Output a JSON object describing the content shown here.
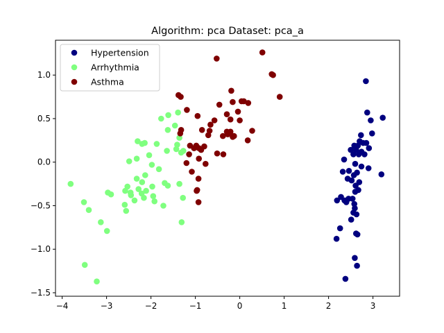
{
  "chart_data": {
    "type": "scatter",
    "title": "Algorithm: pca Dataset: pca_a",
    "xlabel": "",
    "ylabel": "",
    "xlim": [
      -4.15,
      3.6
    ],
    "ylim": [
      -1.54,
      1.4
    ],
    "xticks": [
      -4,
      -3,
      -2,
      -1,
      0,
      1,
      2,
      3
    ],
    "yticks": [
      -1.5,
      -1.0,
      -0.5,
      0.0,
      0.5,
      1.0
    ],
    "xtick_labels": [
      "−4",
      "−3",
      "−2",
      "−1",
      "0",
      "1",
      "2",
      "3"
    ],
    "ytick_labels": [
      "−1.5",
      "−1.0",
      "−0.5",
      "0.0",
      "0.5",
      "1.0"
    ],
    "grid": false,
    "legend_position": "top-left",
    "series": [
      {
        "name": "Hypertension",
        "color": "#00007f",
        "points": [
          [
            2.84,
            0.93
          ],
          [
            2.87,
            0.57
          ],
          [
            2.95,
            0.48
          ],
          [
            3.22,
            0.51
          ],
          [
            2.98,
            0.33
          ],
          [
            2.73,
            0.31
          ],
          [
            2.7,
            0.24
          ],
          [
            2.78,
            0.22
          ],
          [
            2.85,
            0.22
          ],
          [
            2.58,
            0.19
          ],
          [
            2.66,
            0.19
          ],
          [
            2.91,
            0.16
          ],
          [
            2.5,
            0.14
          ],
          [
            2.62,
            0.14
          ],
          [
            2.74,
            0.12
          ],
          [
            2.56,
            0.09
          ],
          [
            2.68,
            0.09
          ],
          [
            2.81,
            0.09
          ],
          [
            2.35,
            0.03
          ],
          [
            2.6,
            -0.02
          ],
          [
            2.74,
            -0.05
          ],
          [
            2.9,
            -0.07
          ],
          [
            2.32,
            -0.11
          ],
          [
            2.46,
            -0.1
          ],
          [
            2.64,
            -0.12
          ],
          [
            3.19,
            -0.14
          ],
          [
            2.57,
            -0.15
          ],
          [
            2.43,
            -0.19
          ],
          [
            2.52,
            -0.21
          ],
          [
            2.69,
            -0.23
          ],
          [
            2.61,
            -0.27
          ],
          [
            2.67,
            -0.32
          ],
          [
            2.6,
            -0.34
          ],
          [
            2.28,
            -0.4
          ],
          [
            2.19,
            -0.44
          ],
          [
            2.45,
            -0.42
          ],
          [
            2.54,
            -0.42
          ],
          [
            2.36,
            -0.44
          ],
          [
            2.4,
            -0.46
          ],
          [
            2.58,
            -0.48
          ],
          [
            2.59,
            -0.53
          ],
          [
            2.56,
            -0.58
          ],
          [
            2.63,
            -0.6
          ],
          [
            2.51,
            -0.66
          ],
          [
            2.26,
            -0.76
          ],
          [
            2.62,
            -0.82
          ],
          [
            2.65,
            -0.83
          ],
          [
            2.18,
            -0.88
          ],
          [
            2.59,
            -1.1
          ],
          [
            2.64,
            -1.19
          ],
          [
            2.38,
            -1.34
          ]
        ]
      },
      {
        "name": "Arrhythmia",
        "color": "#7fff7f",
        "points": [
          [
            -1.61,
            0.54
          ],
          [
            -1.39,
            0.57
          ],
          [
            -1.77,
            0.5
          ],
          [
            -1.46,
            0.42
          ],
          [
            -1.62,
            0.37
          ],
          [
            -1.36,
            0.28
          ],
          [
            -2.3,
            0.24
          ],
          [
            -2.14,
            0.22
          ],
          [
            -1.87,
            0.21
          ],
          [
            -1.41,
            0.2
          ],
          [
            -2.2,
            0.21
          ],
          [
            -1.43,
            0.15
          ],
          [
            -1.27,
            0.13
          ],
          [
            -1.64,
            0.13
          ],
          [
            -1.32,
            0.11
          ],
          [
            -2.04,
            0.08
          ],
          [
            -2.32,
            0.04
          ],
          [
            -2.49,
            0.01
          ],
          [
            -1.98,
            -0.03
          ],
          [
            -1.82,
            -0.08
          ],
          [
            -2.13,
            -0.15
          ],
          [
            -2.32,
            -0.19
          ],
          [
            -3.81,
            -0.25
          ],
          [
            -1.69,
            -0.24
          ],
          [
            -1.62,
            -0.27
          ],
          [
            -1.36,
            -0.25
          ],
          [
            -2.2,
            -0.23
          ],
          [
            -1.97,
            -0.28
          ],
          [
            -2.28,
            -0.31
          ],
          [
            -2.53,
            -0.28
          ],
          [
            -2.11,
            -0.33
          ],
          [
            -2.58,
            -0.33
          ],
          [
            -2.46,
            -0.35
          ],
          [
            -2.97,
            -0.35
          ],
          [
            -2.21,
            -0.36
          ],
          [
            -2.45,
            -0.38
          ],
          [
            -2.9,
            -0.37
          ],
          [
            -1.95,
            -0.39
          ],
          [
            -2.16,
            -0.41
          ],
          [
            -1.28,
            -0.41
          ],
          [
            -2.37,
            -0.44
          ],
          [
            -3.51,
            -0.46
          ],
          [
            -1.92,
            -0.45
          ],
          [
            -2.59,
            -0.49
          ],
          [
            -1.72,
            -0.5
          ],
          [
            -3.4,
            -0.55
          ],
          [
            -2.56,
            -0.56
          ],
          [
            -3.13,
            -0.69
          ],
          [
            -1.31,
            -0.69
          ],
          [
            -2.99,
            -0.79
          ],
          [
            -3.49,
            -1.18
          ],
          [
            -3.22,
            -1.37
          ]
        ]
      },
      {
        "name": "Asthma",
        "color": "#7f0000",
        "points": [
          [
            0.51,
            1.26
          ],
          [
            -0.52,
            1.19
          ],
          [
            0.72,
            1.01
          ],
          [
            0.75,
            1.0
          ],
          [
            -0.19,
            0.82
          ],
          [
            0.9,
            0.75
          ],
          [
            -1.38,
            0.77
          ],
          [
            -1.33,
            0.75
          ],
          [
            0.04,
            0.7
          ],
          [
            -0.16,
            0.69
          ],
          [
            0.09,
            0.7
          ],
          [
            0.19,
            0.68
          ],
          [
            -0.46,
            0.66
          ],
          [
            -1.19,
            0.6
          ],
          [
            -0.04,
            0.58
          ],
          [
            -0.29,
            0.55
          ],
          [
            -0.95,
            0.53
          ],
          [
            -0.21,
            0.49
          ],
          [
            0.0,
            0.48
          ],
          [
            -0.57,
            0.48
          ],
          [
            -0.66,
            0.43
          ],
          [
            -0.85,
            0.37
          ],
          [
            -1.32,
            0.37
          ],
          [
            -0.68,
            0.36
          ],
          [
            -0.38,
            0.3
          ],
          [
            -0.29,
            0.35
          ],
          [
            -0.21,
            0.35
          ],
          [
            -0.13,
            0.3
          ],
          [
            0.28,
            0.36
          ],
          [
            -0.27,
            0.32
          ],
          [
            -0.71,
            0.31
          ],
          [
            -1.34,
            0.33
          ],
          [
            -0.16,
            0.29
          ],
          [
            0.18,
            0.25
          ],
          [
            -0.8,
            0.18
          ],
          [
            -0.92,
            0.16
          ],
          [
            -1.12,
            0.19
          ],
          [
            -0.98,
            0.19
          ],
          [
            -1.03,
            0.16
          ],
          [
            -0.51,
            0.1
          ],
          [
            -0.87,
            0.14
          ],
          [
            -0.37,
            0.09
          ],
          [
            -1.14,
            0.09
          ],
          [
            -0.92,
            0.04
          ],
          [
            -0.77,
            -0.02
          ],
          [
            -1.2,
            -0.01
          ],
          [
            -1.08,
            -0.11
          ],
          [
            -0.93,
            -0.19
          ],
          [
            -0.96,
            -0.32
          ],
          [
            -0.97,
            -0.33
          ],
          [
            -0.93,
            -0.46
          ]
        ]
      }
    ]
  }
}
